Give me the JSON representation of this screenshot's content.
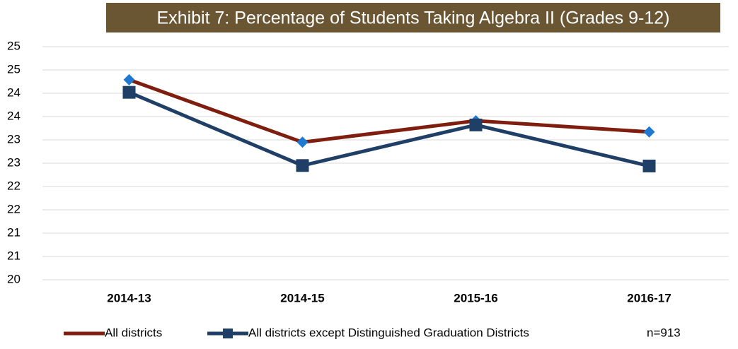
{
  "chart_data": {
    "type": "line",
    "title": "Exhibit 7: Percentage of Students Taking Algebra II (Grades 9-12)",
    "categories": [
      "2014-13",
      "2014-15",
      "2015-16",
      "2016-17"
    ],
    "series": [
      {
        "name": "All districts",
        "color": "#7f1d0e",
        "marker_color": "#1f78d1",
        "values": [
          24.29,
          22.95,
          23.41,
          23.17
        ]
      },
      {
        "name": "All districts except Distinguished Graduation Districts",
        "color": "#1f3f66",
        "values": [
          24.02,
          22.45,
          23.32,
          22.44
        ]
      }
    ],
    "annotation": "n=913",
    "ylim": [
      20,
      25
    ],
    "yticks": [
      {
        "value": 20,
        "label": "20"
      },
      {
        "value": 20.5,
        "label": "21"
      },
      {
        "value": 21,
        "label": "21"
      },
      {
        "value": 21.5,
        "label": "22"
      },
      {
        "value": 22,
        "label": "22"
      },
      {
        "value": 22.5,
        "label": "23"
      },
      {
        "value": 23,
        "label": "23"
      },
      {
        "value": 23.5,
        "label": "24"
      },
      {
        "value": 24,
        "label": "24"
      },
      {
        "value": 24.5,
        "label": "25"
      },
      {
        "value": 25,
        "label": "25"
      }
    ],
    "grid": true
  }
}
